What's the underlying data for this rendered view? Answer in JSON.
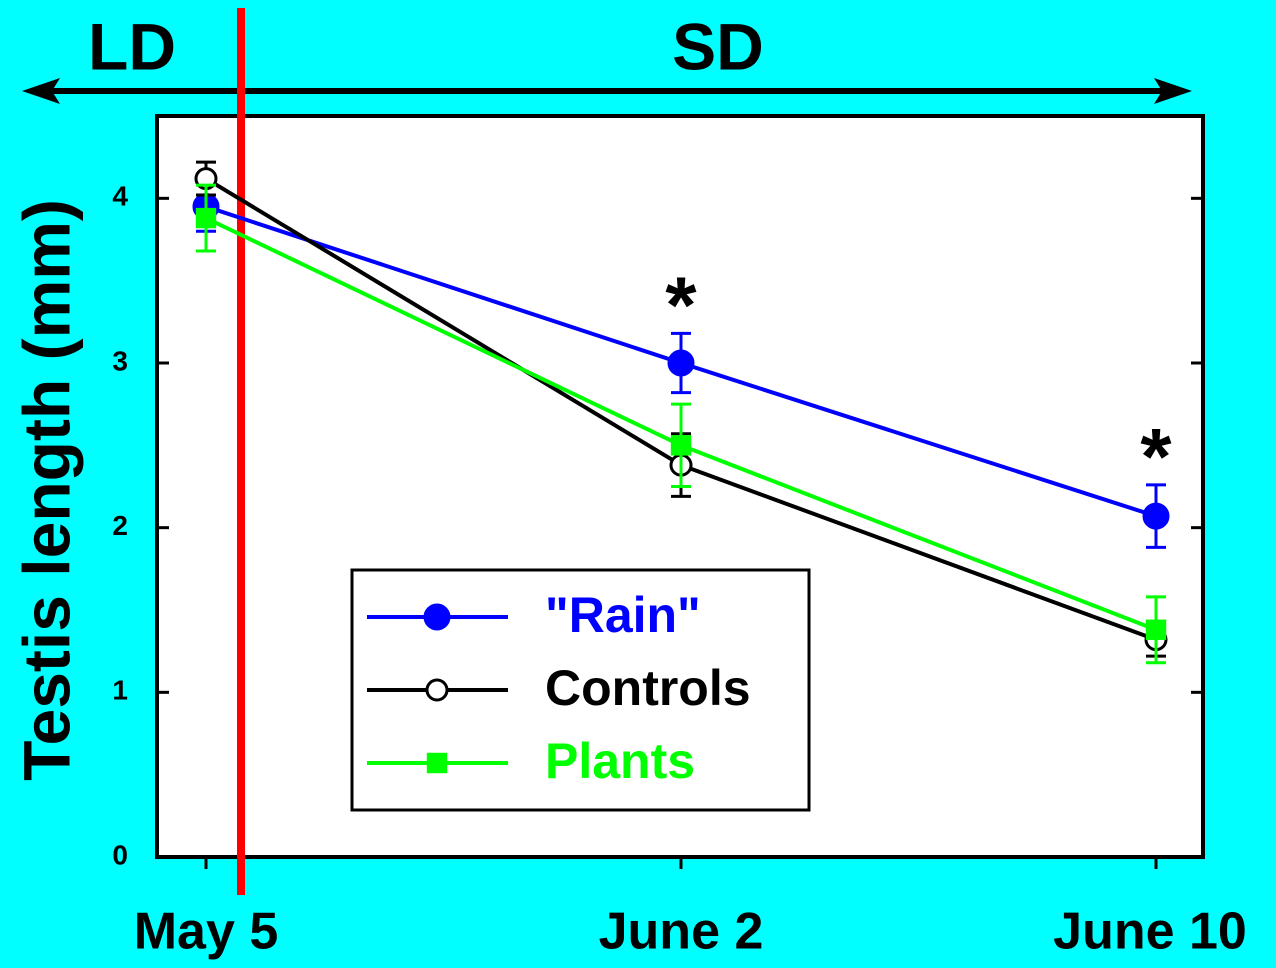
{
  "chart_data": {
    "type": "line",
    "ylabel": "Testis length (mm)",
    "categories": [
      "May 5",
      "June 2",
      "June 10"
    ],
    "ylim": [
      0,
      4.5
    ],
    "yticks": [
      0,
      1,
      2,
      3,
      4
    ],
    "period_labels": [
      "LD",
      "SD"
    ],
    "annotations": [
      "*",
      "*"
    ],
    "series": [
      {
        "name": "\"Rain\"",
        "color": "#0000ff",
        "marker": "filled-circle",
        "values": [
          3.95,
          3.0,
          2.07
        ],
        "errors": [
          0.15,
          0.18,
          0.19
        ]
      },
      {
        "name": "Controls",
        "color": "#000000",
        "marker": "open-circle",
        "values": [
          4.12,
          2.38,
          1.32
        ],
        "errors": [
          0.1,
          0.19,
          0.1
        ]
      },
      {
        "name": "Plants",
        "color": "#00ff00",
        "marker": "square",
        "values": [
          3.88,
          2.5,
          1.38
        ],
        "errors": [
          0.2,
          0.25,
          0.2
        ]
      }
    ]
  }
}
